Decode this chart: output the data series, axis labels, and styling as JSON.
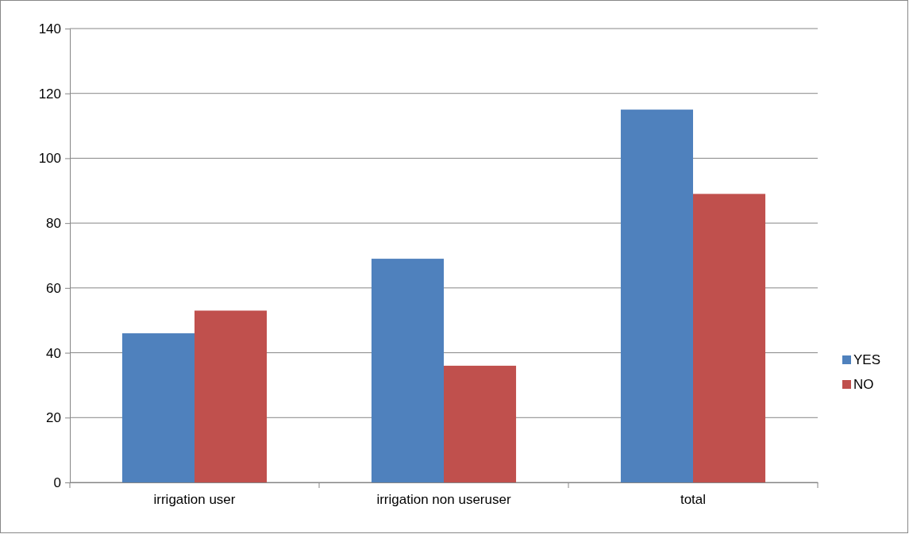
{
  "chart_data": {
    "type": "bar",
    "categories": [
      "irrigation user",
      "irrigation non useruser",
      "total"
    ],
    "series": [
      {
        "name": "YES",
        "color": "#4f81bd",
        "values": [
          46,
          69,
          115
        ]
      },
      {
        "name": "NO",
        "color": "#c0504d",
        "values": [
          53,
          36,
          89
        ]
      }
    ],
    "ylim": [
      0,
      140
    ],
    "yticks": [
      0,
      20,
      40,
      60,
      80,
      100,
      120,
      140
    ],
    "grid": "y",
    "legend": "right"
  }
}
